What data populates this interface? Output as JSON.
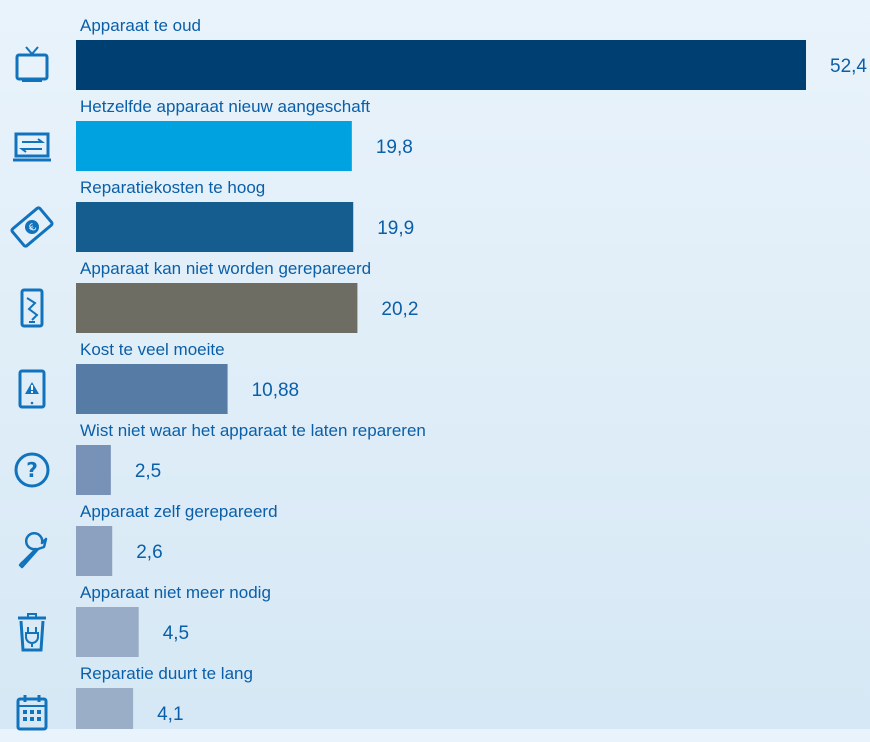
{
  "colors": {
    "accent": "#0a5fa8",
    "icon": "#1273bd"
  },
  "chart_data": {
    "type": "bar",
    "orientation": "horizontal",
    "categories": [
      "Apparaat te oud",
      "Hetzelfde apparaat nieuw aangeschaft",
      "Reparatiekosten te hoog",
      "Apparaat kan niet worden gerepareerd",
      "Kost te veel moeite",
      "Wist niet waar het apparaat te laten repareren",
      "Apparaat zelf gerepareerd",
      "Apparaat niet meer nodig",
      "Reparatie duurt te lang"
    ],
    "values": [
      52.4,
      19.8,
      19.9,
      20.2,
      10.88,
      2.5,
      2.6,
      4.5,
      4.1
    ],
    "value_labels": [
      "52,4",
      "19,8",
      "19,9",
      "20,2",
      "10,88",
      "2,5",
      "2,6",
      "4,5",
      "4,1"
    ],
    "bar_colors": [
      "#003f72",
      "#00a3e0",
      "#145d8e",
      "#6e6d63",
      "#567ba4",
      "#7891b7",
      "#8ca1c0",
      "#99acc7",
      "#9aaec8"
    ],
    "icons": [
      "tv-icon",
      "swap-device-icon",
      "money-euro-icon",
      "broken-phone-icon",
      "warning-tablet-icon",
      "question-icon",
      "wrench-icon",
      "trash-plug-icon",
      "calendar-icon"
    ],
    "xlim": [
      0,
      52.4
    ]
  }
}
